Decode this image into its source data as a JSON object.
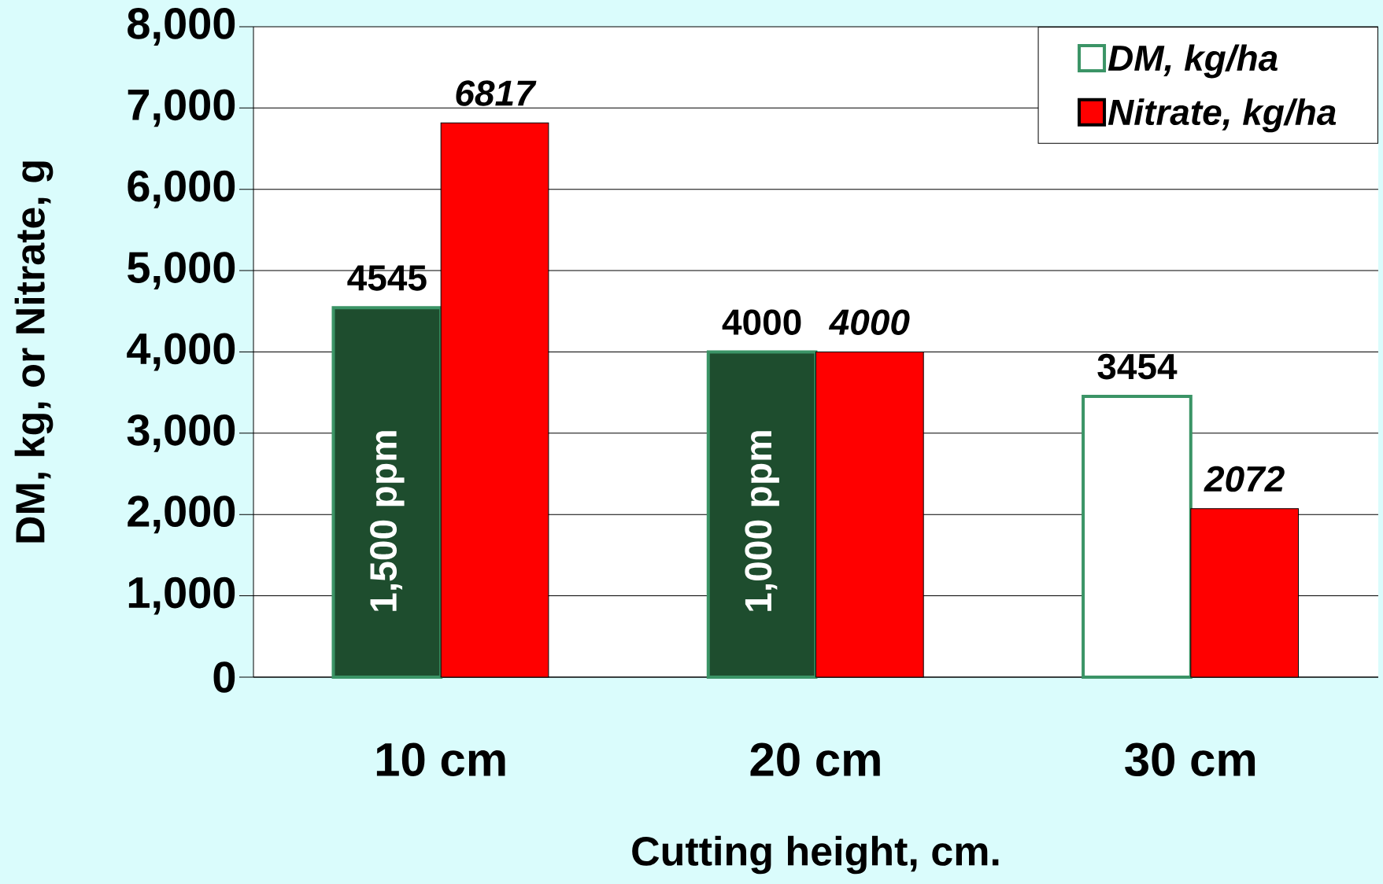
{
  "chart_data": {
    "type": "bar",
    "xlabel": "Cutting height, cm.",
    "ylabel": "DM, kg, or Nitrate, g",
    "categories": [
      "10 cm",
      "20 cm",
      "30 cm"
    ],
    "ylim": [
      0,
      8000
    ],
    "yticks": [
      0,
      {
        "value": 1000,
        "label": "1,000"
      },
      {
        "value": 2000,
        "label": "2,000"
      },
      {
        "value": 3000,
        "label": "3,000"
      },
      {
        "value": 4000,
        "label": "4,000"
      },
      {
        "value": 5000,
        "label": "5,000"
      },
      {
        "value": 6000,
        "label": "6,000"
      },
      {
        "value": 7000,
        "label": "7,000"
      },
      {
        "value": 8000,
        "label": "8,000"
      }
    ],
    "grid": "y",
    "legend": "top right",
    "series": [
      {
        "name": "DM, kg/ha",
        "color": "#3b9466",
        "colors": [
          "#1e4d2e",
          "#1e4d2e",
          "#ffffff"
        ],
        "values": [
          4545,
          4000,
          3454
        ],
        "value_labels": [
          "4545",
          "4000",
          "3454"
        ]
      },
      {
        "name": "Nitrate, kg/ha",
        "color": "#ff0000",
        "values": [
          6817,
          4000,
          2072
        ],
        "value_labels": [
          "6817",
          "4000",
          "2072"
        ]
      }
    ],
    "annotations": [
      "1,500 ppm",
      "1,000 ppm"
    ]
  }
}
